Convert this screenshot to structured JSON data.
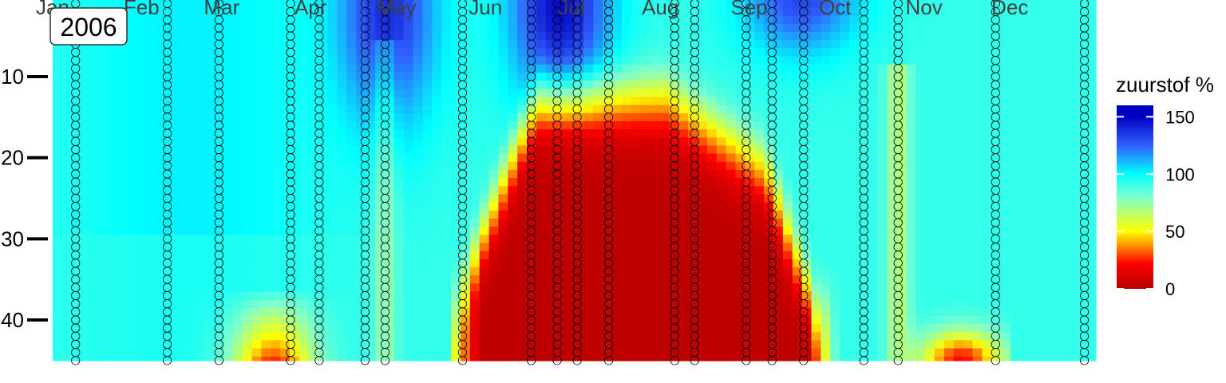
{
  "chart_data": {
    "type": "heatmap",
    "year_label": "2006",
    "months": [
      "Jan",
      "Feb",
      "Mar",
      "Apr",
      "May",
      "Jun",
      "Jul",
      "Aug",
      "Sep",
      "Oct",
      "Nov",
      "Dec"
    ],
    "depth_ticks": [
      10,
      20,
      30,
      40
    ],
    "depth_range": [
      1,
      45
    ],
    "day_range": [
      1,
      365
    ],
    "legend": {
      "title": "zuurstof %",
      "ticks": [
        150,
        100,
        50,
        0
      ],
      "range": [
        0,
        160
      ]
    },
    "sample_days": [
      9,
      41,
      59,
      84,
      94,
      110,
      117,
      144,
      168,
      177,
      184,
      195,
      218,
      225,
      243,
      252,
      263,
      284,
      296,
      330,
      361
    ],
    "colors": {
      "c0": "#b40000",
      "c1": "#ff0000",
      "c2": "#ffff00",
      "c3": "#7fffcc",
      "c4": "#00ffff",
      "c5": "#3060ff",
      "c6": "#0000c0"
    }
  }
}
